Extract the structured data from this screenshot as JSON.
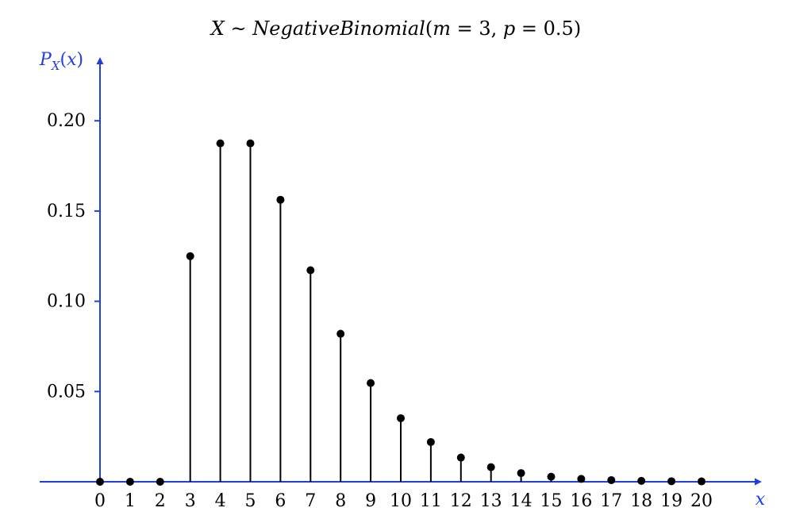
{
  "chart_data": {
    "type": "stem",
    "title": "X ~ NegativeBinomial(m = 3, p = 0.5)",
    "xlabel": "x",
    "ylabel": "P_X(x)",
    "xlim": [
      -1.3,
      22.2
    ],
    "ylim": [
      0,
      0.233
    ],
    "yticks": [
      0.05,
      0.1,
      0.15,
      0.2
    ],
    "ytick_labels": [
      "0.05",
      "0.10",
      "0.15",
      "0.20"
    ],
    "xticks": [
      0,
      1,
      2,
      3,
      4,
      5,
      6,
      7,
      8,
      9,
      10,
      11,
      12,
      13,
      14,
      15,
      16,
      17,
      18,
      19,
      20
    ],
    "xtick_labels": [
      "0",
      "1",
      "2",
      "3",
      "4",
      "5",
      "6",
      "7",
      "8",
      "9",
      "10",
      "11",
      "12",
      "13",
      "14",
      "15",
      "16",
      "17",
      "18",
      "19",
      "20"
    ],
    "x": [
      0,
      1,
      2,
      3,
      4,
      5,
      6,
      7,
      8,
      9,
      10,
      11,
      12,
      13,
      14,
      15,
      16,
      17,
      18,
      19,
      20
    ],
    "y": [
      0,
      0,
      0,
      0.125,
      0.1875,
      0.1875,
      0.15625,
      0.1172,
      0.082,
      0.0547,
      0.0352,
      0.022,
      0.0134,
      0.0081,
      0.0048,
      0.0028,
      0.0016,
      0.0009,
      0.0005,
      0.0003,
      0.0002
    ],
    "colors": {
      "axis": "#1f3fe0",
      "stem": "#000000"
    },
    "grid": false
  }
}
